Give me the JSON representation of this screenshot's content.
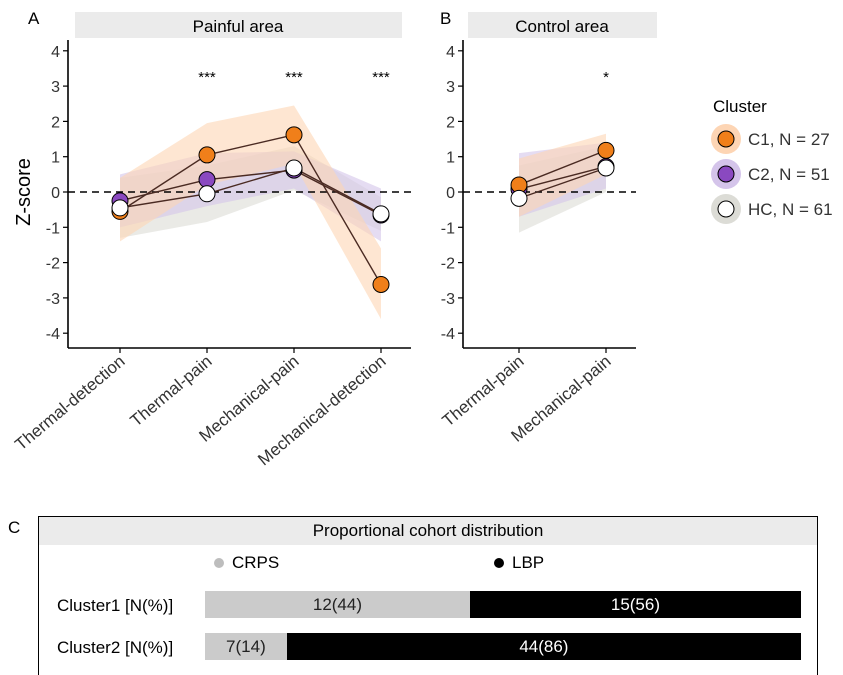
{
  "panel_labels": {
    "a": "A",
    "b": "B",
    "c": "C"
  },
  "y_axis_label": "Z-score",
  "zero_line": "dashed",
  "chart_data": [
    {
      "type": "line",
      "title": "Painful area",
      "ylabel": "Z-score",
      "ylim": [
        -4.4,
        4.4
      ],
      "yticks": [
        4,
        3,
        2,
        1,
        0,
        -1,
        -2,
        -3,
        -4
      ],
      "ytick_labels": [
        "4",
        "3",
        "2",
        "1",
        "0",
        "-1",
        "-2",
        "-3",
        "-4"
      ],
      "categories": [
        "Thermal-detection",
        "Thermal-pain",
        "Mechanical-pain",
        "Mechanical-detection"
      ],
      "annotations": [
        "",
        "***",
        "***",
        "***"
      ],
      "series": [
        {
          "name": "C1, N = 27",
          "color": "#f07f1a",
          "band_color": "#fdd5b4",
          "values": [
            -0.55,
            1.05,
            1.62,
            -2.62
          ],
          "lower": [
            -1.4,
            0.2,
            0.8,
            -3.6
          ],
          "upper": [
            0.4,
            1.95,
            2.45,
            -1.6
          ]
        },
        {
          "name": "C2, N = 51",
          "color": "#8a49c0",
          "band_color": "#d4c4ea",
          "values": [
            -0.25,
            0.35,
            0.62,
            -0.65
          ],
          "lower": [
            -1.0,
            -0.4,
            0.1,
            -1.4
          ],
          "upper": [
            0.5,
            1.1,
            1.15,
            0.1
          ]
        },
        {
          "name": "HC, N = 61",
          "color": "#ffffff",
          "band_color": "#dcdcd6",
          "values": [
            -0.45,
            -0.05,
            0.68,
            -0.62
          ],
          "lower": [
            -1.3,
            -0.85,
            0.05,
            -1.1
          ],
          "upper": [
            0.4,
            0.75,
            1.3,
            -0.15
          ]
        }
      ]
    },
    {
      "type": "line",
      "title": "Control area",
      "ylim": [
        -4.4,
        4.4
      ],
      "yticks": [
        4,
        3,
        2,
        1,
        0,
        -1,
        -2,
        -3,
        -4
      ],
      "ytick_labels": [
        "4",
        "3",
        "2",
        "1",
        "0",
        "-1",
        "-2",
        "-3",
        "-4"
      ],
      "categories": [
        "Thermal-pain",
        "Mechanical-pain"
      ],
      "annotations": [
        "",
        "*"
      ],
      "series": [
        {
          "name": "C1, N = 27",
          "color": "#f07f1a",
          "band_color": "#fdd5b4",
          "values": [
            0.2,
            1.18
          ],
          "lower": [
            -0.7,
            0.5
          ],
          "upper": [
            0.95,
            1.65
          ]
        },
        {
          "name": "C2, N = 51",
          "color": "#8a49c0",
          "band_color": "#d4c4ea",
          "values": [
            0.08,
            0.72
          ],
          "lower": [
            -0.7,
            0.1
          ],
          "upper": [
            1.1,
            1.4
          ]
        },
        {
          "name": "HC, N = 61",
          "color": "#ffffff",
          "band_color": "#dcdcd6",
          "values": [
            -0.18,
            0.68
          ],
          "lower": [
            -1.15,
            0.0
          ],
          "upper": [
            0.75,
            1.3
          ]
        }
      ]
    },
    {
      "type": "bar",
      "title": "Proportional cohort distribution",
      "stacked": true,
      "categories": [
        "Cluster1 [N(%)]",
        "Cluster2 [N(%)]"
      ],
      "series": [
        {
          "name": "CRPS",
          "color": "#cbcbcb",
          "values": [
            12,
            7
          ],
          "percent": [
            44,
            14
          ],
          "labels": [
            "12(44)",
            "7(14)"
          ]
        },
        {
          "name": "LBP",
          "color": "#000000",
          "values": [
            15,
            44
          ],
          "percent": [
            56,
            86
          ],
          "labels": [
            "15(56)",
            "44(86)"
          ]
        }
      ]
    }
  ],
  "legend": {
    "title": "Cluster",
    "placement": "right",
    "items": [
      {
        "label": "C1, N = 27",
        "color": "#f07f1a",
        "halo": "#fdd5b4"
      },
      {
        "label": "C2, N = 51",
        "color": "#8a49c0",
        "halo": "#d4c4ea"
      },
      {
        "label": "HC, N = 61",
        "color": "#ffffff",
        "halo": "#dcdcd6"
      }
    ]
  }
}
